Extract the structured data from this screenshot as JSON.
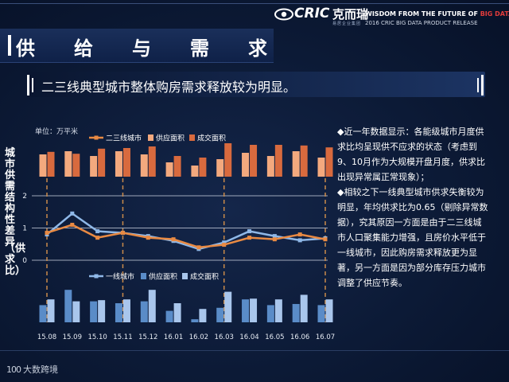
{
  "header": {
    "logo_brand": "CRIC",
    "logo_cn": "克而瑞",
    "logo_sub": "易居企业集团",
    "slogan_pre": "WISDOM FROM THE FUTURE OF ",
    "slogan_highlight": "BIG DATA",
    "release": "2016 CRIC BIG DATA PRODUCT RELEASE"
  },
  "title_chars": [
    "供",
    "给",
    "与",
    "需",
    "求"
  ],
  "subtitle": "二三线典型城市整体购房需求释放较为明显。",
  "unit_label": "单位：万平米",
  "y_axis_label_top": "城市供需结构性差异",
  "y_axis_label_bottom": "（供求比）",
  "legend_top": {
    "line": "二三线城市",
    "s1": "供应面积",
    "s2": "成交面积"
  },
  "legend_bottom": {
    "line": "一线城市",
    "s1": "供应面积",
    "s2": "成交面积"
  },
  "notes": [
    "◆近一年数据显示：各能级城市月度供求比均呈现供不应求的状态（考虑到9、10月作为大规模开盘月度，供求比出现异常属正常现象）；",
    "◆相较之下一线典型城市供求失衡较为明显，年均供求比为0.65（剔除异常数据），究其原因一方面是由于二三线城市人口聚集能力增强，且房价水平低于一线城市，因此购房需求释放更为显著，另一方面是因为部分库存压力城市调整了供应节奏。"
  ],
  "footer": {
    "brand_num": "100",
    "brand_text": "大数跨境"
  },
  "colors": {
    "tier23_line": "#e98a43",
    "tier23_supply": "#f3a97e",
    "tier23_deal": "#d86a3e",
    "tier1_line": "#8fb8e8",
    "tier1_supply": "#5a8cc8",
    "tier1_deal": "#a9c6ec",
    "dashed_highlight": "#c98a4a"
  },
  "chart_data": {
    "type": "bar+line",
    "categories": [
      "15.08",
      "15.09",
      "15.10",
      "15.11",
      "15.12",
      "16.01",
      "16.02",
      "16.03",
      "16.04",
      "16.05",
      "16.06",
      "16.07"
    ],
    "y_ticks": [
      "0",
      "1",
      "2"
    ],
    "ylim": [
      0,
      2
    ],
    "highlighted_months": [
      "15.08",
      "15.11",
      "16.03",
      "16.07"
    ],
    "tier23": {
      "ratio": [
        0.85,
        1.1,
        0.7,
        0.85,
        0.7,
        0.65,
        0.4,
        0.48,
        0.7,
        0.65,
        0.8,
        0.65
      ],
      "supply": [
        0.7,
        0.8,
        0.65,
        0.8,
        0.7,
        0.45,
        0.35,
        0.55,
        0.75,
        0.65,
        0.8,
        0.6
      ],
      "deal": [
        0.78,
        0.72,
        0.88,
        0.9,
        0.95,
        0.65,
        0.6,
        1.05,
        1.0,
        1.0,
        0.98,
        0.92
      ]
    },
    "tier1": {
      "ratio": [
        0.8,
        1.45,
        0.9,
        0.85,
        0.75,
        0.6,
        0.35,
        0.55,
        0.9,
        0.75,
        0.62,
        0.68
      ],
      "supply": [
        0.45,
        0.85,
        0.55,
        0.5,
        0.55,
        0.3,
        0.08,
        0.38,
        0.6,
        0.45,
        0.48,
        0.45
      ],
      "deal": [
        0.6,
        0.55,
        0.58,
        0.6,
        0.85,
        0.5,
        0.35,
        0.8,
        0.62,
        0.6,
        0.72,
        0.6
      ]
    }
  }
}
